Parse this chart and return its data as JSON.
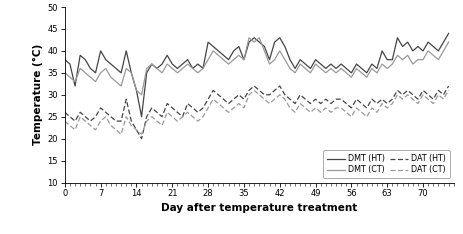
{
  "xlabel": "Day after temperature treatment",
  "ylabel": "Temperature (°C)",
  "xlim": [
    0,
    76
  ],
  "ylim": [
    10.0,
    50.0
  ],
  "yticks": [
    10.0,
    15.0,
    20.0,
    25.0,
    30.0,
    35.0,
    40.0,
    45.0,
    50.0
  ],
  "xticks": [
    0,
    7,
    14,
    21,
    28,
    35,
    42,
    49,
    56,
    63,
    70
  ],
  "colors": {
    "HT": "#444444",
    "CT": "#999999"
  },
  "dmt_ht": [
    38,
    37,
    32,
    39,
    38,
    36,
    35,
    40,
    38,
    37,
    36,
    35,
    40,
    35,
    31,
    25,
    35,
    37,
    36,
    37,
    39,
    37,
    36,
    37,
    38,
    36,
    37,
    36,
    42,
    41,
    40,
    39,
    38,
    40,
    41,
    38,
    42,
    43,
    42,
    41,
    38,
    42,
    43,
    41,
    38,
    36,
    38,
    37,
    36,
    38,
    37,
    36,
    37,
    36,
    37,
    36,
    35,
    37,
    36,
    35,
    37,
    36,
    40,
    38,
    38,
    43,
    41,
    42,
    40,
    41,
    40,
    42,
    41,
    40,
    42,
    44
  ],
  "dat_ht": [
    26,
    25,
    24,
    26,
    25,
    24,
    25,
    27,
    26,
    25,
    24,
    24,
    29,
    24,
    22,
    20,
    25,
    27,
    26,
    25,
    28,
    27,
    26,
    25,
    28,
    27,
    26,
    27,
    29,
    31,
    30,
    29,
    28,
    29,
    30,
    29,
    31,
    32,
    31,
    30,
    30,
    31,
    32,
    30,
    29,
    28,
    30,
    29,
    28,
    29,
    28,
    29,
    28,
    29,
    29,
    28,
    27,
    29,
    28,
    27,
    29,
    28,
    29,
    28,
    29,
    31,
    30,
    31,
    30,
    29,
    31,
    30,
    29,
    31,
    30,
    32
  ],
  "dmt_ct": [
    35,
    34,
    33,
    36,
    35,
    34,
    33,
    35,
    36,
    34,
    33,
    32,
    36,
    35,
    31,
    30,
    36,
    37,
    36,
    35,
    37,
    36,
    35,
    36,
    37,
    36,
    35,
    36,
    38,
    40,
    39,
    38,
    37,
    38,
    39,
    38,
    43,
    42,
    43,
    40,
    37,
    38,
    40,
    38,
    36,
    35,
    37,
    36,
    35,
    37,
    36,
    35,
    36,
    35,
    36,
    35,
    34,
    36,
    35,
    34,
    36,
    35,
    37,
    36,
    37,
    39,
    38,
    39,
    37,
    38,
    38,
    40,
    39,
    38,
    40,
    42
  ],
  "dat_ct": [
    24,
    23,
    22,
    25,
    24,
    23,
    22,
    24,
    25,
    23,
    22,
    21,
    25,
    23,
    22,
    21,
    24,
    25,
    24,
    23,
    26,
    25,
    24,
    25,
    26,
    25,
    24,
    25,
    27,
    29,
    28,
    27,
    26,
    27,
    28,
    27,
    30,
    31,
    30,
    29,
    28,
    29,
    30,
    29,
    27,
    26,
    28,
    27,
    26,
    27,
    26,
    27,
    26,
    27,
    27,
    26,
    25,
    27,
    26,
    25,
    27,
    26,
    28,
    27,
    28,
    30,
    29,
    30,
    29,
    28,
    30,
    29,
    28,
    30,
    29,
    31
  ]
}
